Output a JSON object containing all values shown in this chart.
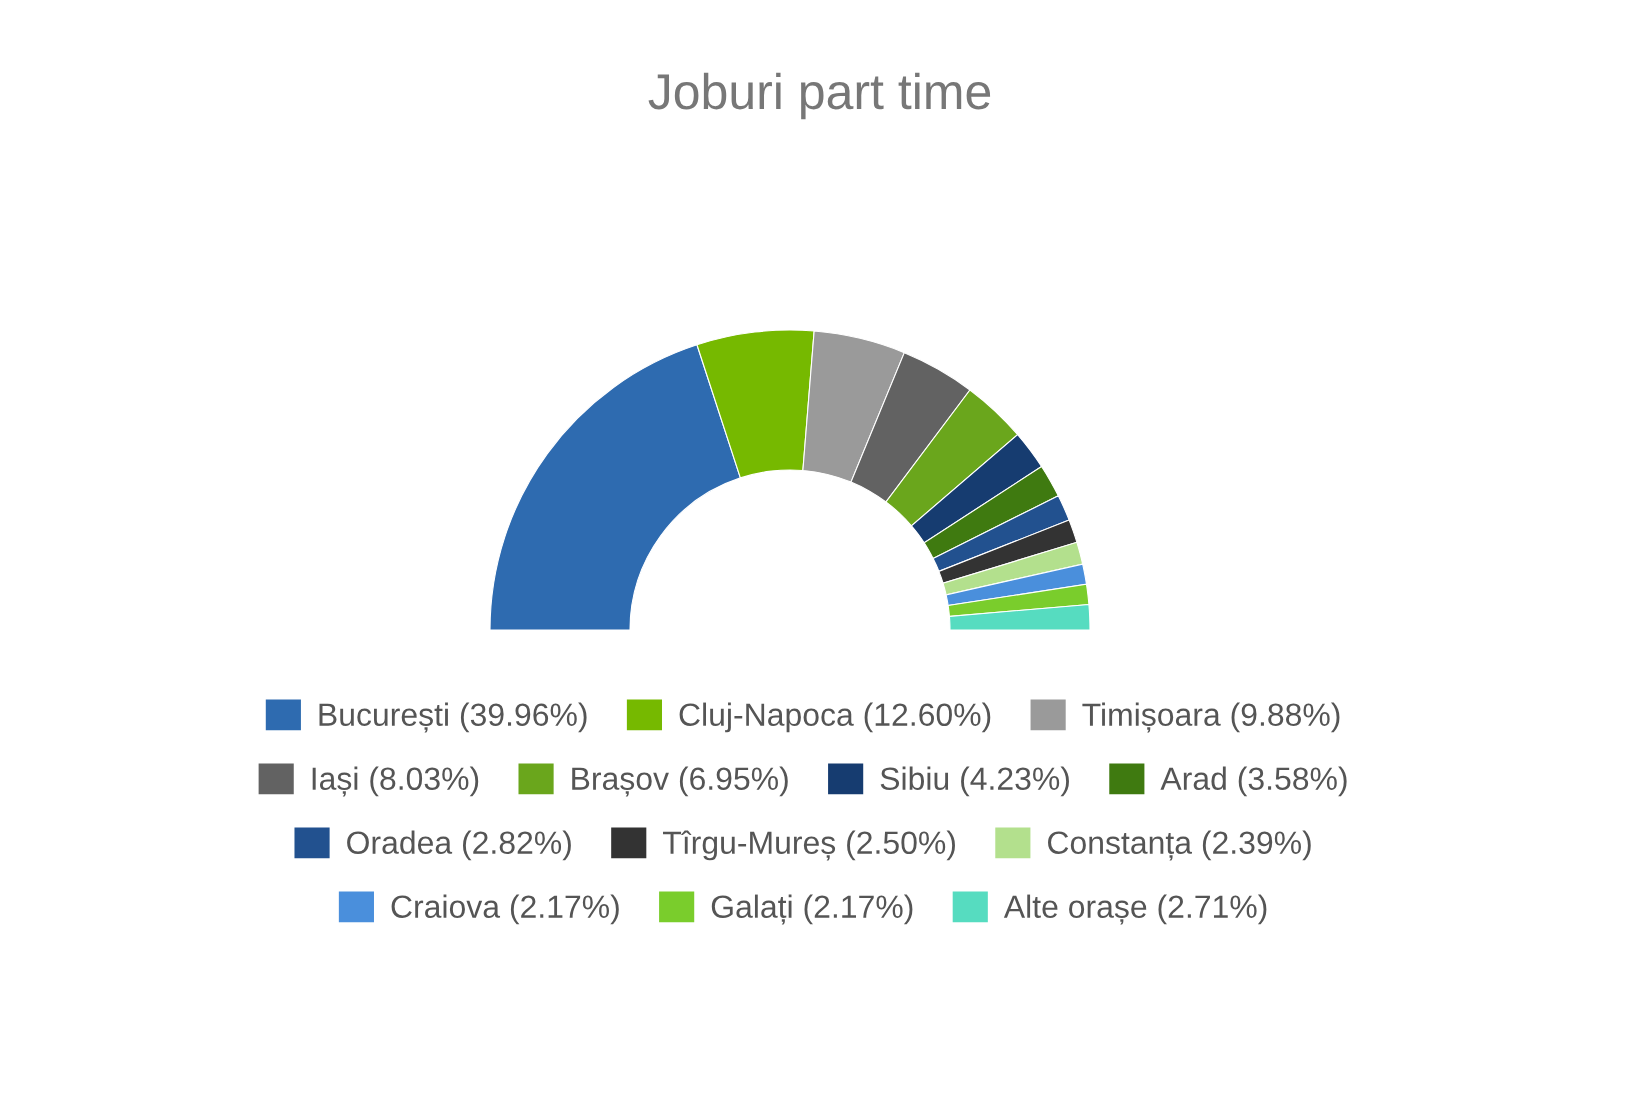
{
  "chart_data": {
    "type": "donut",
    "title": "Joburi part time",
    "legend": "bottom",
    "categories": [
      "București (39.96%)",
      "Cluj-Napoca (12.60%)",
      "Timișoara (9.88%)",
      "Iași (8.03%)",
      "Brașov (6.95%)",
      "Sibiu (4.23%)",
      "Arad (3.58%)",
      "Oradea (2.82%)",
      "Tîrgu-Mureș (2.50%)",
      "Constanța (2.39%)",
      "Craiova (2.17%)",
      "Galați (2.17%)",
      "Alte orașe (2.71%)"
    ],
    "values": [
      39.96,
      12.6,
      9.88,
      8.03,
      6.95,
      4.23,
      3.58,
      2.82,
      2.5,
      2.39,
      2.17,
      2.17,
      2.71
    ],
    "colors": [
      "#2e6bb0",
      "#76b900",
      "#9a9a9a",
      "#626262",
      "#6aa61c",
      "#163c70",
      "#3f7a10",
      "#22518f",
      "#333333",
      "#b3e08d",
      "#4a8fdc",
      "#7acd2c",
      "#56dcc0"
    ]
  }
}
